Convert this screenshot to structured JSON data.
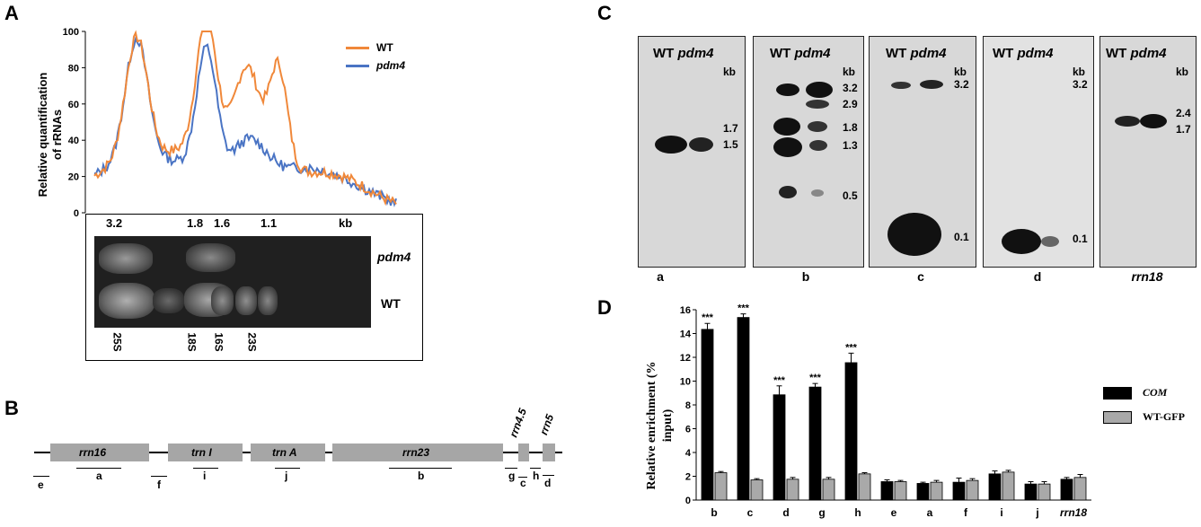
{
  "panel_letters": {
    "a": "A",
    "b": "B",
    "c": "C",
    "d": "D"
  },
  "panelA": {
    "ylabel_line1": "Relative quantification",
    "ylabel_line2": "of rRNAs",
    "yticks": [
      "0",
      "20",
      "40",
      "60",
      "80",
      "100"
    ],
    "legend": [
      {
        "name": "WT",
        "color": "#f0883a"
      },
      {
        "name": "pdm4",
        "color": "#4a74c4"
      }
    ],
    "size_labels": [
      "3.2",
      "1.8",
      "1.6",
      "1.1",
      "kb"
    ],
    "gel_lanes": [
      "pdm4",
      "WT"
    ],
    "rrna_labels": [
      "25S",
      "18S",
      "16S",
      "23S"
    ]
  },
  "panelB": {
    "genes": [
      "rrn16",
      "trn I",
      "trn A",
      "rrn23",
      "rrn4.5",
      "rrn5"
    ],
    "segments": [
      "e",
      "a",
      "f",
      "i",
      "j",
      "b",
      "g",
      "c",
      "h",
      "d"
    ]
  },
  "panelC": {
    "header_wt": "WT",
    "header_mut": "pdm4",
    "kb": "kb",
    "blots": [
      {
        "label": "a",
        "sizes": [
          "1.7",
          "1.5"
        ]
      },
      {
        "label": "b",
        "sizes": [
          "3.2",
          "2.9",
          "1.8",
          "1.3",
          "0.5"
        ]
      },
      {
        "label": "c",
        "sizes": [
          "3.2",
          "0.1"
        ]
      },
      {
        "label": "d",
        "sizes": [
          "3.2",
          "0.1"
        ]
      },
      {
        "label": "rrn18",
        "sizes": [
          "2.4",
          "1.7"
        ]
      }
    ]
  },
  "chart_data": {
    "type": "bar",
    "title": "",
    "xlabel": "",
    "ylabel": "Relative enrichment (% input)",
    "ylim": [
      0,
      16
    ],
    "yticks": [
      "0",
      "2",
      "4",
      "6",
      "8",
      "10",
      "12",
      "14",
      "16"
    ],
    "categories": [
      "b",
      "c",
      "d",
      "g",
      "h",
      "e",
      "a",
      "f",
      "i",
      "j",
      "rrn18"
    ],
    "significance": [
      "***",
      "***",
      "***",
      "***",
      "***",
      "",
      "",
      "",
      "",
      "",
      ""
    ],
    "series": [
      {
        "name": "COM",
        "color": "#000000",
        "values": [
          14.35,
          15.35,
          8.85,
          9.5,
          11.55,
          1.55,
          1.4,
          1.5,
          2.2,
          1.35,
          1.75
        ],
        "errors": [
          0.5,
          0.3,
          0.75,
          0.3,
          0.8,
          0.15,
          0.1,
          0.35,
          0.25,
          0.2,
          0.15
        ]
      },
      {
        "name": "WT-GFP",
        "color": "#a9a9a9",
        "values": [
          2.3,
          1.7,
          1.75,
          1.75,
          2.2,
          1.55,
          1.5,
          1.65,
          2.35,
          1.35,
          1.9
        ],
        "errors": [
          0.1,
          0.1,
          0.15,
          0.15,
          0.1,
          0.1,
          0.15,
          0.15,
          0.15,
          0.2,
          0.25
        ]
      }
    ],
    "legend_position": "right"
  }
}
